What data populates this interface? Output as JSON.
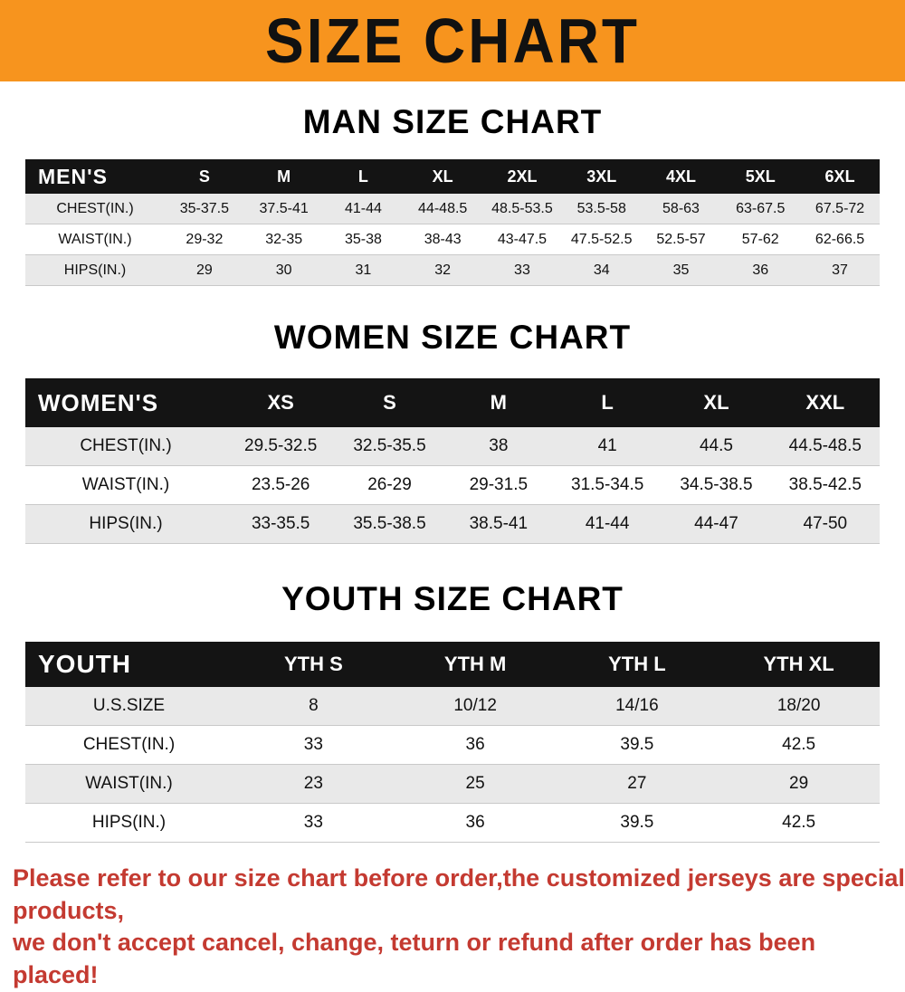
{
  "banner": {
    "title": "SIZE CHART",
    "bg_color": "#f7941e"
  },
  "sections": [
    {
      "heading": "MAN SIZE CHART",
      "table": {
        "header_label": "MEN'S",
        "columns": [
          "S",
          "M",
          "L",
          "XL",
          "2XL",
          "3XL",
          "4XL",
          "5XL",
          "6XL"
        ],
        "rows": [
          {
            "label": "CHEST(IN.)",
            "values": [
              "35-37.5",
              "37.5-41",
              "41-44",
              "44-48.5",
              "48.5-53.5",
              "53.5-58",
              "58-63",
              "63-67.5",
              "67.5-72"
            ]
          },
          {
            "label": "WAIST(IN.)",
            "values": [
              "29-32",
              "32-35",
              "35-38",
              "38-43",
              "43-47.5",
              "47.5-52.5",
              "52.5-57",
              "57-62",
              "62-66.5"
            ]
          },
          {
            "label": "HIPS(IN.)",
            "values": [
              "29",
              "30",
              "31",
              "32",
              "33",
              "34",
              "35",
              "36",
              "37"
            ]
          }
        ]
      }
    },
    {
      "heading": "WOMEN SIZE CHART",
      "table": {
        "header_label": "WOMEN'S",
        "columns": [
          "XS",
          "S",
          "M",
          "L",
          "XL",
          "XXL"
        ],
        "rows": [
          {
            "label": "CHEST(IN.)",
            "values": [
              "29.5-32.5",
              "32.5-35.5",
              "38",
              "41",
              "44.5",
              "44.5-48.5"
            ]
          },
          {
            "label": "WAIST(IN.)",
            "values": [
              "23.5-26",
              "26-29",
              "29-31.5",
              "31.5-34.5",
              "34.5-38.5",
              "38.5-42.5"
            ]
          },
          {
            "label": "HIPS(IN.)",
            "values": [
              "33-35.5",
              "35.5-38.5",
              "38.5-41",
              "41-44",
              "44-47",
              "47-50"
            ]
          }
        ]
      }
    },
    {
      "heading": "YOUTH SIZE CHART",
      "table": {
        "header_label": "YOUTH",
        "columns": [
          "YTH S",
          "YTH M",
          "YTH L",
          "YTH XL"
        ],
        "rows": [
          {
            "label": "U.S.SIZE",
            "values": [
              "8",
              "10/12",
              "14/16",
              "18/20"
            ]
          },
          {
            "label": "CHEST(IN.)",
            "values": [
              "33",
              "36",
              "39.5",
              "42.5"
            ]
          },
          {
            "label": "WAIST(IN.)",
            "values": [
              "23",
              "25",
              "27",
              "29"
            ]
          },
          {
            "label": "HIPS(IN.)",
            "values": [
              "33",
              "36",
              "39.5",
              "42.5"
            ]
          }
        ]
      }
    }
  ],
  "footer": {
    "lines": [
      "Please refer to our size chart before order,the customized jerseys are special products,",
      "we don't accept cancel, change, teturn or refund after order has been placed!"
    ],
    "text_color": "#c43a31"
  }
}
